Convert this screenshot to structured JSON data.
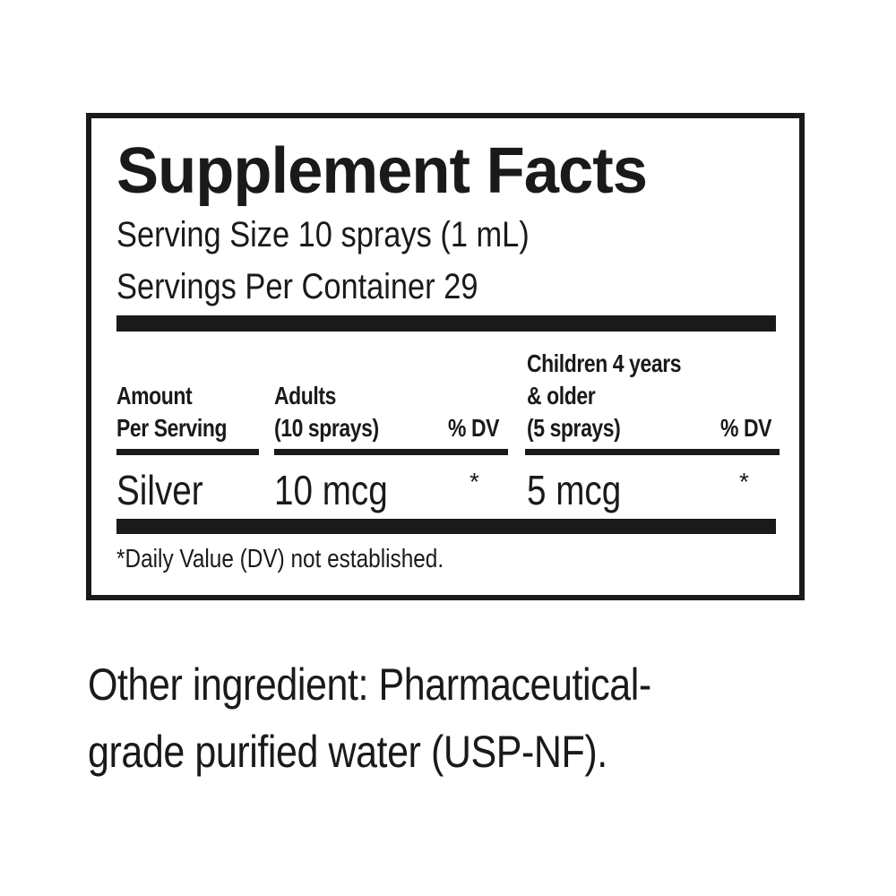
{
  "label": {
    "title": "Supplement Facts",
    "serving_size": "Serving Size 10 sprays (1 mL)",
    "servings_per_container": "Servings Per Container 29",
    "headers": {
      "amount_line1": "Amount",
      "amount_line2": "Per Serving",
      "adults_line1": "Adults",
      "adults_line2": "(10 sprays)",
      "adults_dv": "% DV",
      "children_line1": "Children 4 years",
      "children_line2": "& older",
      "children_line3": "(5 sprays)",
      "children_dv": "% DV"
    },
    "rows": [
      {
        "name": "Silver",
        "adults_amount": "10 mcg",
        "adults_dv": "*",
        "children_amount": "5 mcg",
        "children_dv": "*"
      }
    ],
    "footnote": "*Daily Value (DV) not established."
  },
  "other_ingredients": {
    "line1": "Other ingredient: Pharmaceutical-",
    "line2": "grade purified water (USP-NF)."
  }
}
